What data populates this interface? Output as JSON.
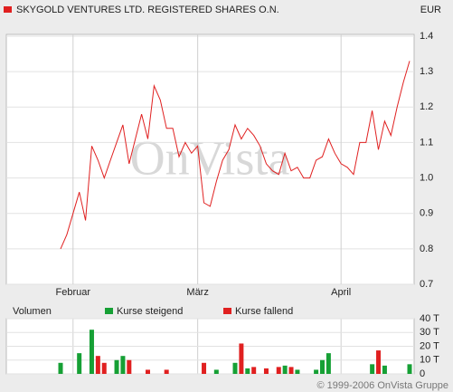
{
  "chart_data": [
    {
      "type": "line",
      "categories": [
        null,
        null,
        "Februar",
        null,
        null,
        null,
        null,
        null,
        null,
        null,
        null,
        null,
        null,
        null,
        null,
        null,
        null,
        null,
        null,
        null,
        null,
        null,
        "März",
        null,
        null,
        null,
        null,
        null,
        null,
        null,
        null,
        null,
        null,
        null,
        null,
        null,
        null,
        null,
        null,
        null,
        null,
        null,
        null,
        null,
        null,
        "April",
        null,
        null,
        null,
        null,
        null,
        null,
        null,
        null,
        null,
        null,
        null
      ],
      "series": [
        {
          "name": "SKYGOLD VENTURES LTD. REGISTERED SHARES O.N.",
          "color": "#e02020",
          "values": [
            0.8,
            0.84,
            0.9,
            0.96,
            0.88,
            1.09,
            1.05,
            1.0,
            1.05,
            1.1,
            1.15,
            1.04,
            1.11,
            1.18,
            1.11,
            1.26,
            1.22,
            1.14,
            1.14,
            1.06,
            1.1,
            1.07,
            1.09,
            0.93,
            0.92,
            0.99,
            1.05,
            1.08,
            1.15,
            1.11,
            1.14,
            1.12,
            1.09,
            1.04,
            1.02,
            1.01,
            1.07,
            1.02,
            1.03,
            1.0,
            1.0,
            1.05,
            1.06,
            1.11,
            1.07,
            1.04,
            1.03,
            1.01,
            1.1,
            1.1,
            1.19,
            1.08,
            1.16,
            1.12,
            1.2,
            1.27,
            1.33
          ]
        }
      ],
      "y_label": "EUR",
      "watermark": "OnVista",
      "ylim": [
        0.7,
        1.4
      ],
      "yticks": [
        0.7,
        0.8,
        0.9,
        {
          "value": 1,
          "label": "1.0"
        },
        1.1,
        1.2,
        1.3,
        1.4
      ],
      "grid": true
    },
    {
      "type": "bar",
      "title": "Volumen",
      "series": [
        {
          "name": "Kurse steigend",
          "color": "#16a035",
          "values": [
            8,
            null,
            null,
            15,
            null,
            32,
            null,
            null,
            null,
            10,
            13,
            null,
            null,
            null,
            null,
            null,
            null,
            null,
            null,
            null,
            null,
            null,
            null,
            null,
            null,
            3,
            null,
            null,
            8,
            null,
            4,
            null,
            null,
            null,
            null,
            null,
            6,
            null,
            3,
            null,
            null,
            3,
            10,
            15,
            null,
            null,
            null,
            null,
            null,
            null,
            7,
            null,
            6,
            null,
            null,
            null,
            7
          ]
        },
        {
          "name": "Kurse fallend",
          "color": "#e02020",
          "values": [
            null,
            null,
            null,
            null,
            null,
            null,
            13,
            8,
            null,
            null,
            null,
            10,
            null,
            null,
            3,
            null,
            null,
            3,
            null,
            null,
            null,
            null,
            null,
            8,
            null,
            null,
            null,
            null,
            null,
            22,
            null,
            5,
            null,
            4,
            null,
            5,
            null,
            5,
            null,
            null,
            null,
            null,
            null,
            null,
            null,
            null,
            null,
            null,
            null,
            null,
            null,
            17,
            null,
            null,
            null,
            null,
            null
          ]
        }
      ],
      "ylim": [
        0,
        40
      ],
      "yticks": [
        0,
        {
          "value": 10,
          "label": "10 T"
        },
        {
          "value": 20,
          "label": "20 T"
        },
        {
          "value": 30,
          "label": "30 T"
        },
        {
          "value": 40,
          "label": "40 T"
        }
      ],
      "grid": true
    }
  ],
  "copyright": "© 1999-2006 OnVista Gruppe"
}
